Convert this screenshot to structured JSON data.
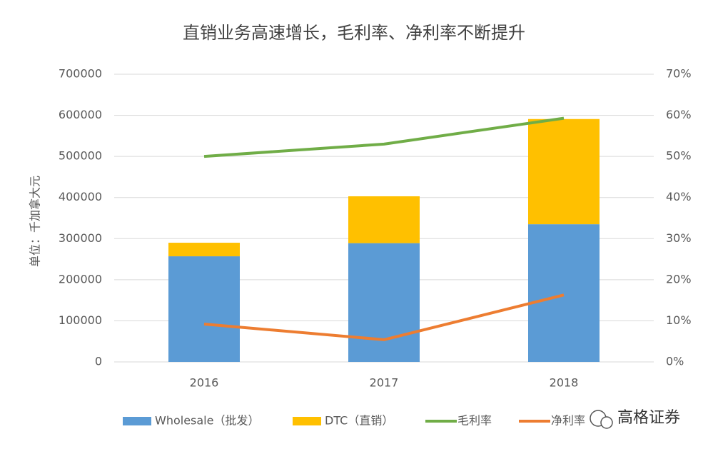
{
  "chart_data": {
    "type": "bar",
    "title": "直销业务高速增长，毛利率、净利率不断提升",
    "y_label": "单位：千加拿大元",
    "categories": [
      "2016",
      "2017",
      "2018"
    ],
    "series": [
      {
        "name": "Wholesale（批发）",
        "type": "bar",
        "color": "#5b9bd5",
        "values": [
          257000,
          289000,
          335000
        ]
      },
      {
        "name": "DTC（直销）",
        "type": "bar",
        "color": "#ffc000",
        "values": [
          33000,
          114000,
          256000
        ]
      },
      {
        "name": "毛利率",
        "type": "line",
        "axis": "y2",
        "color": "#70ad47",
        "values": [
          50,
          53,
          59.3
        ]
      },
      {
        "name": "净利率",
        "type": "line",
        "axis": "y2",
        "color": "#ed7d31",
        "values": [
          9.2,
          5.4,
          16.3
        ]
      }
    ],
    "ylim": [
      0,
      700000
    ],
    "yticks": [
      0,
      100000,
      200000,
      300000,
      400000,
      500000,
      600000,
      700000
    ],
    "y2lim": [
      0,
      70
    ],
    "y2ticks": [
      {
        "value": 0,
        "label": "0%"
      },
      {
        "value": 10,
        "label": "10%"
      },
      {
        "value": 20,
        "label": "20%"
      },
      {
        "value": 30,
        "label": "30%"
      },
      {
        "value": 40,
        "label": "40%"
      },
      {
        "value": 50,
        "label": "50%"
      },
      {
        "value": 60,
        "label": "60%"
      },
      {
        "value": 70,
        "label": "70%"
      }
    ],
    "grid": true,
    "legend": "bottom",
    "watermark": "高格证券"
  }
}
